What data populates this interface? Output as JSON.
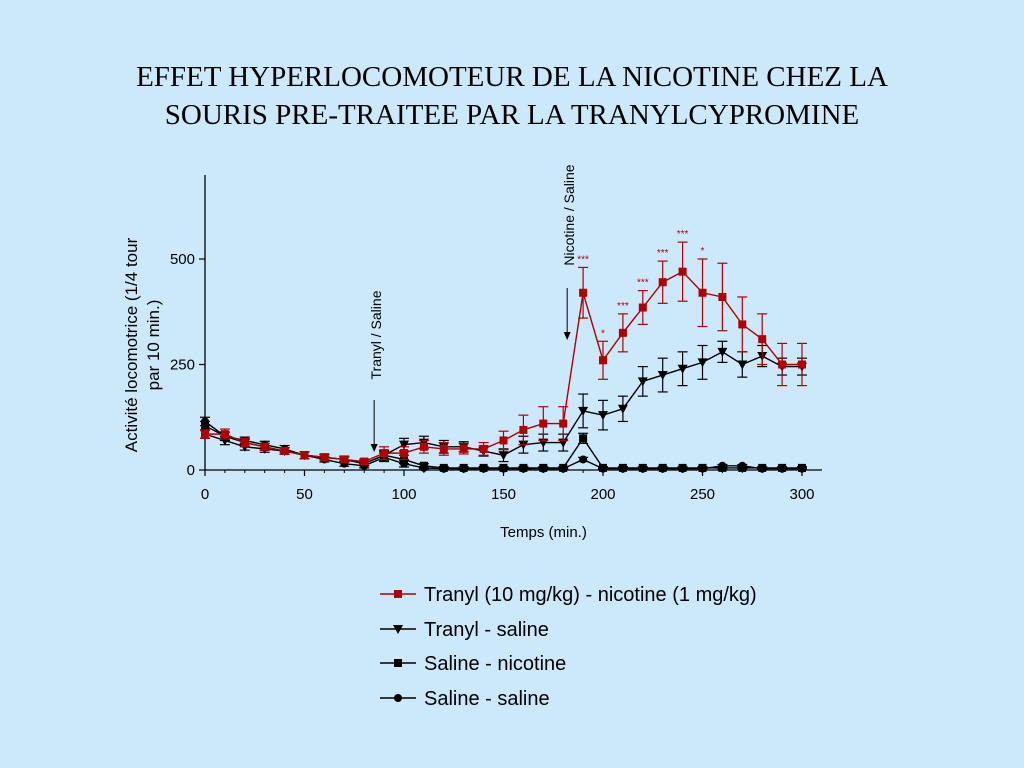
{
  "title": {
    "line1": "EFFET HYPERLOCOMOTEUR DE LA NICOTINE CHEZ LA",
    "line2": "SOURIS PRE-TRAITEE PAR LA TRANYLCYPROMINE"
  },
  "colors": {
    "background": "#cce8fb",
    "red": "#b00000",
    "black": "#000000"
  },
  "chart_data": {
    "type": "line",
    "xlabel": "Temps (min.)",
    "ylabel_line1": "Activité locomotrice (1/4 tour",
    "ylabel_line2": "par 10 min.)",
    "xlim": [
      0,
      300
    ],
    "ylim": [
      0,
      700
    ],
    "x_ticks": [
      "0",
      "50",
      "100",
      "150",
      "200",
      "250",
      "300"
    ],
    "y_ticks": [
      "0",
      "250",
      "500"
    ],
    "legend_position": "bottom",
    "annotations": [
      {
        "text": "Tranyl / Saline",
        "x": 85
      },
      {
        "text": "Nicotine / Saline",
        "x": 182
      }
    ],
    "x": [
      0,
      10,
      20,
      30,
      40,
      50,
      60,
      70,
      80,
      90,
      100,
      110,
      120,
      130,
      140,
      150,
      160,
      170,
      180,
      190,
      200,
      210,
      220,
      230,
      240,
      250,
      260,
      270,
      280,
      290,
      300
    ],
    "series": [
      {
        "name": "Tranyl (10 mg/kg) - nicotine (1 mg/kg)",
        "color": "#b00000",
        "marker": "square",
        "values": [
          85,
          85,
          65,
          55,
          45,
          35,
          30,
          25,
          20,
          40,
          40,
          55,
          50,
          50,
          50,
          70,
          95,
          110,
          110,
          420,
          260,
          325,
          385,
          445,
          470,
          420,
          410,
          345,
          310,
          250,
          250
        ],
        "errors": [
          10,
          12,
          10,
          8,
          8,
          8,
          6,
          6,
          6,
          15,
          15,
          15,
          15,
          12,
          15,
          22,
          35,
          40,
          40,
          60,
          45,
          45,
          40,
          50,
          70,
          80,
          80,
          65,
          60,
          50,
          50
        ],
        "significance": [
          null,
          null,
          null,
          null,
          null,
          null,
          null,
          null,
          null,
          null,
          null,
          null,
          null,
          null,
          null,
          null,
          null,
          null,
          null,
          "***",
          "*",
          "***",
          "***",
          "***",
          "***",
          "*",
          null,
          null,
          null,
          null,
          null
        ]
      },
      {
        "name": "Tranyl - saline",
        "color": "#000000",
        "marker": "triangle-down",
        "values": [
          85,
          70,
          55,
          50,
          45,
          35,
          30,
          25,
          15,
          35,
          60,
          65,
          55,
          55,
          45,
          35,
          60,
          65,
          65,
          140,
          130,
          145,
          210,
          225,
          240,
          255,
          280,
          250,
          270,
          245,
          245
        ],
        "errors": [
          10,
          10,
          8,
          8,
          8,
          8,
          6,
          6,
          5,
          12,
          15,
          15,
          15,
          12,
          12,
          15,
          20,
          20,
          20,
          40,
          35,
          30,
          35,
          40,
          40,
          40,
          25,
          30,
          25,
          20,
          20
        ]
      },
      {
        "name": "Saline - nicotine",
        "color": "#000000",
        "marker": "square",
        "values": [
          105,
          80,
          65,
          55,
          45,
          35,
          30,
          25,
          15,
          35,
          25,
          10,
          5,
          5,
          5,
          5,
          5,
          5,
          5,
          75,
          5,
          5,
          5,
          5,
          5,
          5,
          5,
          5,
          5,
          5,
          5
        ],
        "errors": [
          10,
          10,
          8,
          8,
          8,
          8,
          6,
          6,
          5,
          10,
          10,
          5,
          3,
          3,
          3,
          3,
          3,
          3,
          3,
          12,
          3,
          3,
          3,
          3,
          3,
          3,
          3,
          3,
          3,
          3,
          3
        ]
      },
      {
        "name": "Saline - saline",
        "color": "#000000",
        "marker": "circle",
        "values": [
          115,
          80,
          70,
          60,
          50,
          35,
          25,
          15,
          10,
          30,
          15,
          5,
          3,
          3,
          3,
          3,
          3,
          3,
          3,
          25,
          3,
          3,
          3,
          3,
          3,
          3,
          10,
          10,
          3,
          3,
          3
        ],
        "errors": [
          10,
          10,
          8,
          8,
          8,
          8,
          6,
          6,
          5,
          10,
          8,
          3,
          2,
          2,
          2,
          2,
          2,
          2,
          2,
          5,
          2,
          2,
          2,
          2,
          2,
          2,
          3,
          3,
          2,
          2,
          2
        ]
      }
    ]
  }
}
